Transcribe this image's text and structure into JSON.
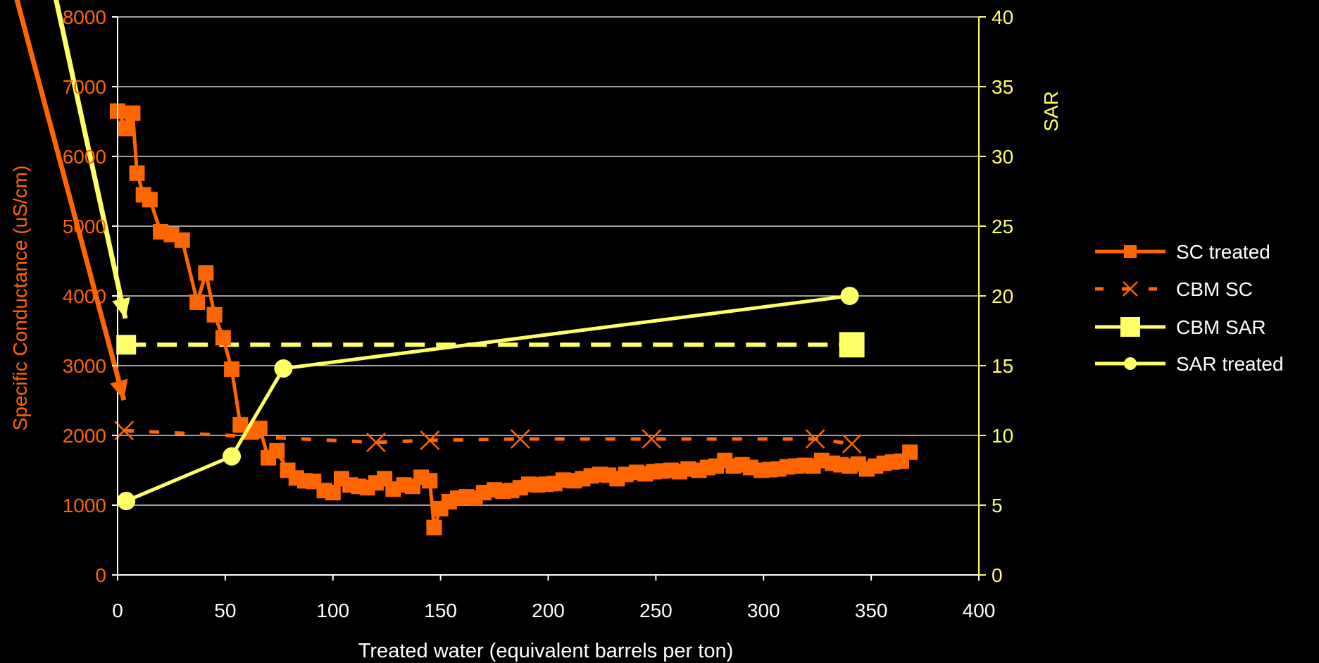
{
  "chart_data": {
    "type": "line",
    "xlabel": "Treated water (equivalent barrels per ton)",
    "ylabel": "Specific Conductance (uS/cm)",
    "y2label": "SAR",
    "xlim": [
      0,
      400
    ],
    "ylim": [
      0,
      8000
    ],
    "y2lim": [
      0,
      40
    ],
    "xticks": [
      "0",
      "50",
      "100",
      "150",
      "200",
      "250",
      "300",
      "350",
      "400"
    ],
    "yticks": [
      "0",
      "1000",
      "2000",
      "3000",
      "4000",
      "5000",
      "6000",
      "7000",
      "8000"
    ],
    "y2ticks": [
      "0",
      "5",
      "10",
      "15",
      "20",
      "25",
      "30",
      "35",
      "40"
    ],
    "grid": "horizontal",
    "legend_position": "right",
    "colors": {
      "sc": "#ff6600",
      "sar": "#ffff66",
      "axis": "#ffffff"
    },
    "series": [
      {
        "name": "SC treated",
        "axis": "left",
        "style": "solid-square",
        "x": [
          0,
          4,
          7,
          9,
          12,
          15,
          20,
          25,
          30,
          37,
          41,
          45,
          49,
          53,
          57,
          62,
          66,
          70,
          74,
          79,
          83,
          87,
          91,
          96,
          100,
          104,
          108,
          112,
          116,
          120,
          124,
          128,
          133,
          137,
          141,
          145,
          147,
          150,
          154,
          158,
          162,
          166,
          170,
          175,
          179,
          183,
          187,
          191,
          195,
          199,
          203,
          207,
          212,
          216,
          220,
          224,
          228,
          232,
          236,
          241,
          245,
          249,
          253,
          257,
          261,
          265,
          270,
          274,
          278,
          282,
          286,
          290,
          294,
          299,
          303,
          307,
          311,
          315,
          319,
          323,
          327,
          332,
          336,
          340,
          344,
          348,
          352,
          356,
          360,
          364,
          368
        ],
        "y": [
          6650,
          6400,
          6620,
          5760,
          5450,
          5380,
          4920,
          4880,
          4800,
          3910,
          4330,
          3730,
          3400,
          2950,
          2150,
          2050,
          2100,
          1680,
          1780,
          1500,
          1390,
          1350,
          1340,
          1210,
          1180,
          1380,
          1290,
          1270,
          1250,
          1320,
          1380,
          1230,
          1290,
          1270,
          1400,
          1350,
          680,
          950,
          1050,
          1100,
          1120,
          1100,
          1180,
          1220,
          1200,
          1210,
          1250,
          1300,
          1290,
          1300,
          1310,
          1360,
          1350,
          1380,
          1420,
          1440,
          1430,
          1380,
          1440,
          1470,
          1450,
          1480,
          1490,
          1500,
          1480,
          1520,
          1500,
          1540,
          1560,
          1640,
          1560,
          1580,
          1540,
          1500,
          1510,
          1520,
          1550,
          1560,
          1570,
          1560,
          1640,
          1600,
          1580,
          1560,
          1590,
          1520,
          1560,
          1600,
          1620,
          1630,
          1760
        ]
      },
      {
        "name": "CBM SC",
        "axis": "left",
        "style": "dashed-x",
        "x": [
          3,
          120,
          145,
          187,
          248,
          324,
          341
        ],
        "y": [
          2070,
          1900,
          1930,
          1950,
          1950,
          1950,
          1880
        ]
      },
      {
        "name": "CBM SAR",
        "axis": "right",
        "style": "dashed-square",
        "x": [
          4,
          341
        ],
        "y": [
          16.5,
          16.5
        ]
      },
      {
        "name": "SAR treated",
        "axis": "right",
        "style": "solid-circle",
        "x": [
          4,
          53,
          77,
          340
        ],
        "y": [
          5.3,
          8.5,
          14.8,
          20
        ]
      }
    ]
  }
}
